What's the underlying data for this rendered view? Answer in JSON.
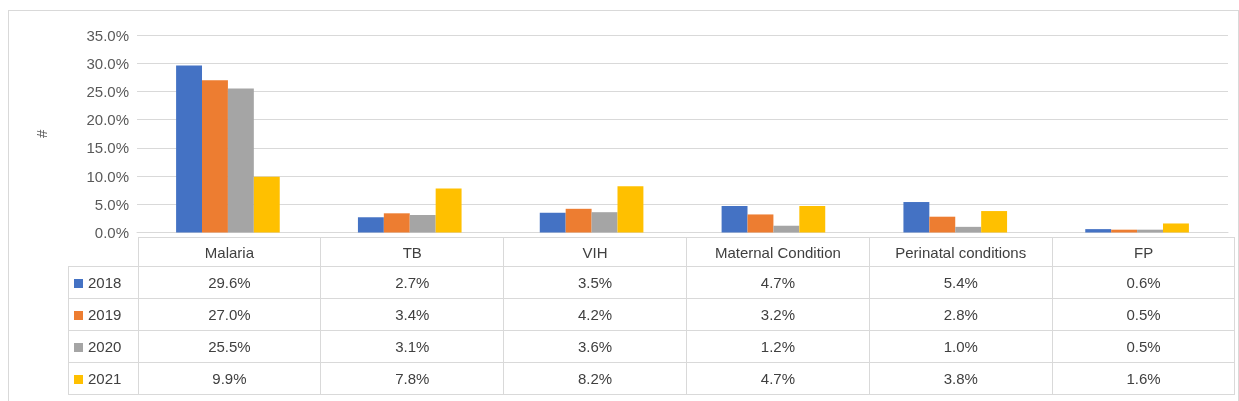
{
  "chart_data": {
    "type": "bar",
    "ylabel": "#",
    "categories": [
      "Malaria",
      "TB",
      "VIH",
      "Maternal Condition",
      "Perinatal conditions",
      "FP"
    ],
    "series": [
      {
        "name": "2018",
        "color": "#4472c4",
        "values": [
          29.6,
          2.7,
          3.5,
          4.7,
          5.4,
          0.6
        ],
        "value_labels": [
          "29.6%",
          "2.7%",
          "3.5%",
          "4.7%",
          "5.4%",
          "0.6%"
        ]
      },
      {
        "name": "2019",
        "color": "#ed7d31",
        "values": [
          27.0,
          3.4,
          4.2,
          3.2,
          2.8,
          0.5
        ],
        "value_labels": [
          "27.0%",
          "3.4%",
          "4.2%",
          "3.2%",
          "2.8%",
          "0.5%"
        ]
      },
      {
        "name": "2020",
        "color": "#a5a5a5",
        "values": [
          25.5,
          3.1,
          3.6,
          1.2,
          1.0,
          0.5
        ],
        "value_labels": [
          "25.5%",
          "3.1%",
          "3.6%",
          "1.2%",
          "1.0%",
          "0.5%"
        ]
      },
      {
        "name": "2021",
        "color": "#ffc000",
        "values": [
          9.9,
          7.8,
          8.2,
          4.7,
          3.8,
          1.6
        ],
        "value_labels": [
          "9.9%",
          "7.8%",
          "8.2%",
          "4.7%",
          "3.8%",
          "1.6%"
        ]
      }
    ],
    "ylim": [
      0,
      35
    ],
    "yticks": [
      {
        "value": 0,
        "label": "0.0%"
      },
      {
        "value": 5,
        "label": "5.0%"
      },
      {
        "value": 10,
        "label": "10.0%"
      },
      {
        "value": 15,
        "label": "15.0%"
      },
      {
        "value": 20,
        "label": "20.0%"
      },
      {
        "value": 25,
        "label": "25.0%"
      },
      {
        "value": 30,
        "label": "30.0%"
      },
      {
        "value": 35,
        "label": "35.0%"
      }
    ],
    "grid": "y",
    "legend": "bottom"
  }
}
